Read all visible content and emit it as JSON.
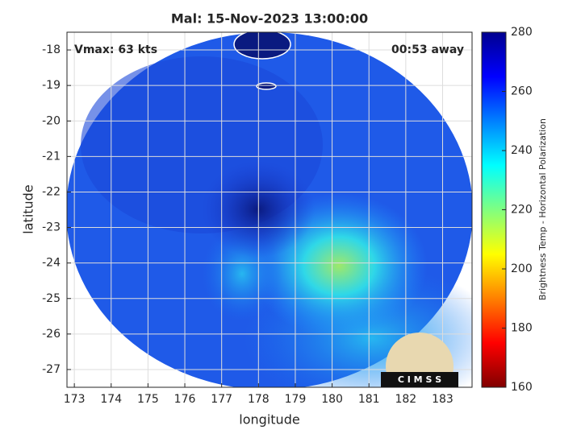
{
  "chart_data": {
    "type": "image",
    "title": "Mal: 15-Nov-2023 13:00:00",
    "annotations": [
      "Vmax: 63 kts",
      "00:53 away"
    ],
    "xlabel": "longitude",
    "ylabel": "latitude",
    "xlim": [
      172.8,
      183.8
    ],
    "xticks": [
      173,
      174,
      175,
      176,
      177,
      178,
      179,
      180,
      181,
      182,
      183
    ],
    "ylim": [
      -27.5,
      -17.5
    ],
    "yticks": [
      -18,
      -19,
      -20,
      -21,
      -22,
      -23,
      -24,
      -25,
      -26,
      -27
    ],
    "grid": true,
    "colorbar": {
      "label": "Brightness Temp - Horizontal Polarization",
      "lim": [
        160,
        280
      ],
      "ticks": [
        160,
        180,
        200,
        220,
        240,
        260,
        280
      ],
      "colors": [
        "#800000",
        "#ff0000",
        "#ff8000",
        "#ffff00",
        "#80ff80",
        "#00ffff",
        "#0080ff",
        "#0000ff",
        "#00008f"
      ]
    },
    "logo": "C I M S S"
  }
}
